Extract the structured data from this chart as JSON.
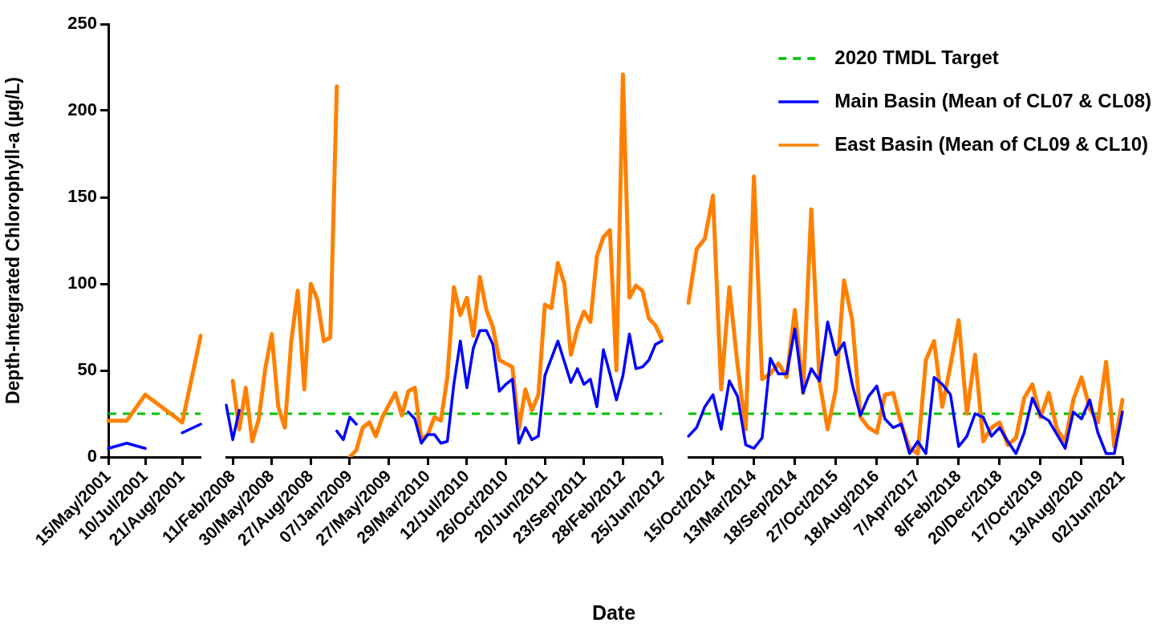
{
  "chart_data": [
    {
      "type": "line",
      "ylabel": "Depth-Integrated Chlorophyll-a (µg/L)",
      "categories": [
        "15/May/2001",
        null,
        "10/Jul/2001",
        null,
        "21/Aug/2001",
        null
      ],
      "ylim": [
        0,
        250
      ],
      "yticks": [
        0,
        50,
        100,
        150,
        200,
        250
      ],
      "grid": false,
      "legend": false,
      "marker": "none",
      "ref_lines": [
        {
          "axis": "y",
          "value": 25,
          "color": "#00c000",
          "line_style": "dashed"
        }
      ],
      "series": [
        {
          "color": "#0000ff",
          "values": [
            5,
            8,
            5,
            null,
            14,
            19
          ]
        },
        {
          "color": "#ff8000",
          "values": [
            21,
            21,
            36,
            28,
            20,
            70
          ]
        }
      ]
    },
    {
      "type": "line",
      "xlabel": "Date",
      "categories": [
        null,
        "11/Feb/2008",
        null,
        null,
        null,
        null,
        null,
        "30/May/2008",
        null,
        null,
        null,
        null,
        null,
        "27/Aug/2008",
        null,
        null,
        null,
        null,
        null,
        "07/Jan/2009",
        null,
        null,
        null,
        null,
        null,
        "27/May/2009",
        null,
        null,
        null,
        null,
        null,
        "29/Mar/2010",
        null,
        null,
        null,
        null,
        null,
        "12/Jul/2010",
        null,
        null,
        null,
        null,
        null,
        "26/Oct/2010",
        null,
        null,
        null,
        null,
        null,
        "20/Jun/2011",
        null,
        null,
        null,
        null,
        null,
        "23/Sep/2011",
        null,
        null,
        null,
        null,
        null,
        "28/Feb/2012",
        null,
        null,
        null,
        null,
        null,
        "25/Jun/2012"
      ],
      "ylim": [
        0,
        250
      ],
      "yticks": [
        0,
        50,
        100,
        150,
        200,
        250
      ],
      "tick_labels": "x",
      "grid": false,
      "legend": false,
      "marker": "none",
      "ref_lines": [
        {
          "axis": "y",
          "value": 25,
          "color": "#00c000",
          "line_style": "dashed"
        }
      ],
      "series": [
        {
          "color": "#0000ff",
          "values": [
            30,
            10,
            27,
            null,
            null,
            null,
            null,
            null,
            null,
            null,
            null,
            null,
            null,
            null,
            null,
            null,
            null,
            15,
            10,
            23,
            19,
            null,
            null,
            null,
            null,
            null,
            null,
            null,
            26,
            22,
            8,
            13,
            13,
            8,
            9,
            42,
            67,
            40,
            63,
            73,
            73,
            65,
            38,
            42,
            45,
            8,
            17,
            10,
            12,
            47,
            57,
            67,
            55,
            43,
            51,
            42,
            45,
            29,
            62,
            48,
            33,
            47,
            71,
            51,
            52,
            56,
            65,
            67
          ]
        },
        {
          "color": "#ff8000",
          "values": [
            null,
            44,
            16,
            40,
            9,
            22,
            51,
            71,
            29,
            17,
            67,
            96,
            39,
            100,
            91,
            67,
            69,
            214,
            null,
            0,
            4,
            17,
            20,
            12,
            23,
            30,
            37,
            24,
            38,
            40,
            10,
            13,
            23,
            21,
            46,
            98,
            82,
            92,
            70,
            104,
            85,
            75,
            56,
            54,
            52,
            16,
            39,
            27,
            36,
            88,
            86,
            112,
            100,
            59,
            74,
            84,
            78,
            116,
            127,
            131,
            50,
            221,
            92,
            99,
            96,
            80,
            76,
            68
          ]
        }
      ]
    },
    {
      "type": "line",
      "categories": [
        null,
        null,
        null,
        "15/Oct/2014",
        null,
        null,
        null,
        null,
        "13/Mar/2014",
        null,
        null,
        null,
        null,
        "18/Sep/2014",
        null,
        null,
        null,
        null,
        "27/Oct/2015",
        null,
        null,
        null,
        null,
        "18/Aug/2016",
        null,
        null,
        null,
        null,
        "7/Apr/2017",
        null,
        null,
        null,
        null,
        "8/Feb/2018",
        null,
        null,
        null,
        null,
        "20/Dec/2018",
        null,
        null,
        null,
        null,
        "17/Oct/2019",
        null,
        null,
        null,
        null,
        "13/Aug/2020",
        null,
        null,
        null,
        null,
        "02/Jun/2021"
      ],
      "ylim": [
        0,
        250
      ],
      "yticks": [
        0,
        50,
        100,
        150,
        200,
        250
      ],
      "tick_labels": "x",
      "grid": false,
      "legend": "top right",
      "marker": "none",
      "ref_lines": [
        {
          "axis": "y",
          "value": 25,
          "label": "2020 TMDL Target",
          "color": "#00c000",
          "line_style": "dashed"
        }
      ],
      "series": [
        {
          "name": "Main Basin (Mean of CL07 & CL08)",
          "color": "#0000ff",
          "values": [
            12,
            17,
            29,
            36,
            16,
            44,
            35,
            7,
            5,
            11,
            57,
            48,
            48,
            74,
            37,
            51,
            44,
            78,
            59,
            66,
            42,
            24,
            35,
            41,
            22,
            17,
            19,
            2,
            9,
            2,
            46,
            42,
            36,
            6,
            12,
            25,
            23,
            12,
            17,
            9,
            2,
            14,
            34,
            24,
            21,
            13,
            5,
            26,
            22,
            33,
            14,
            2,
            2,
            26
          ]
        },
        {
          "name": "East Basin (Mean of CL09 & CL10)",
          "color": "#ff8000",
          "values": [
            89,
            120,
            126,
            151,
            39,
            98,
            53,
            16,
            162,
            45,
            48,
            54,
            46,
            85,
            37,
            143,
            44,
            16,
            39,
            102,
            79,
            23,
            17,
            14,
            36,
            37,
            19,
            5,
            2,
            56,
            67,
            29,
            53,
            79,
            25,
            59,
            9,
            17,
            20,
            7,
            11,
            34,
            42,
            23,
            37,
            16,
            9,
            33,
            46,
            28,
            20,
            55,
            6,
            33
          ]
        }
      ]
    }
  ]
}
